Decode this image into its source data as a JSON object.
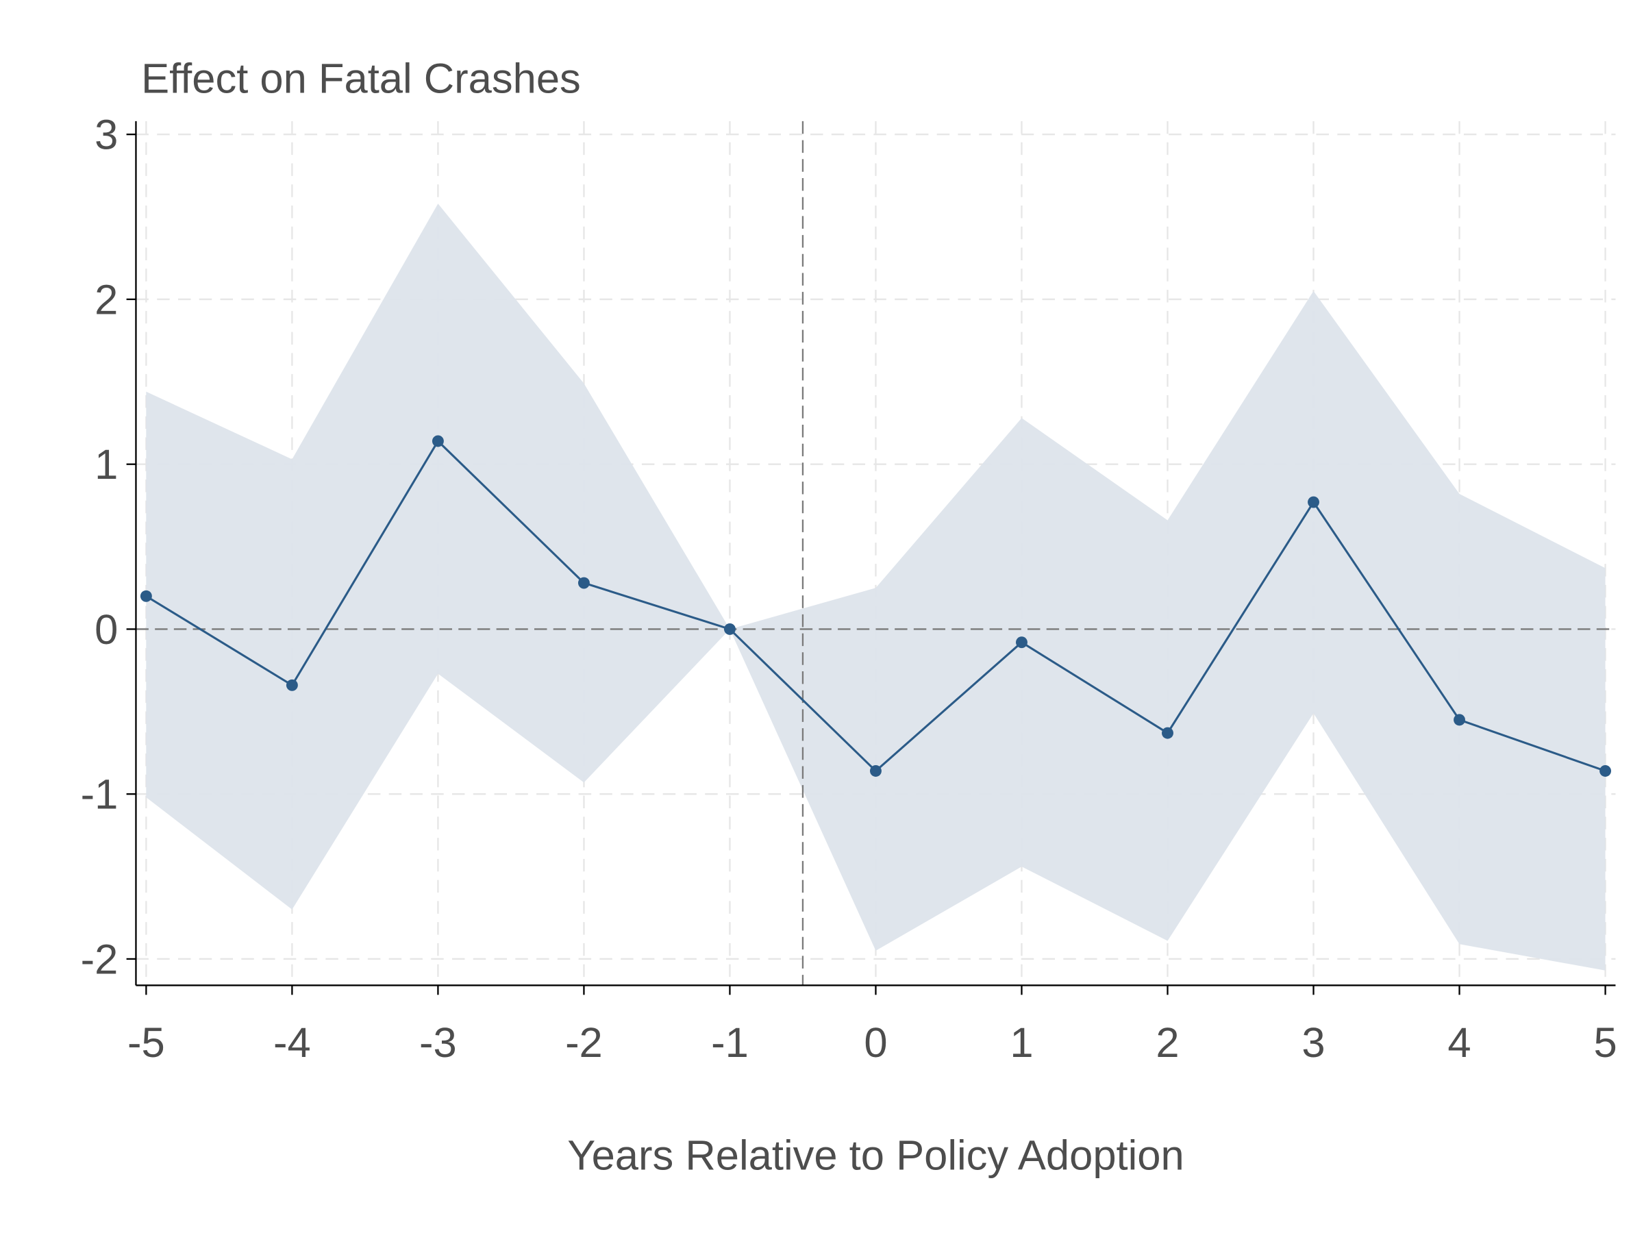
{
  "chart_data": {
    "type": "line",
    "title": "Effect on Fatal Crashes",
    "xlabel": "Years Relative to Policy Adoption",
    "ylabel": "",
    "x": [
      -5,
      -4,
      -3,
      -2,
      -1,
      0,
      1,
      2,
      3,
      4,
      5
    ],
    "series": [
      {
        "values": [
          0.2,
          -0.34,
          1.14,
          0.28,
          0.0,
          -0.86,
          -0.08,
          -0.63,
          0.77,
          -0.55,
          -0.86
        ],
        "ci_upper": [
          1.44,
          1.03,
          2.58,
          1.49,
          0.0,
          0.25,
          1.28,
          0.66,
          2.05,
          0.82,
          0.37
        ],
        "ci_lower": [
          -1.02,
          -1.7,
          -0.27,
          -0.93,
          0.0,
          -1.95,
          -1.44,
          -1.89,
          -0.51,
          -1.91,
          -2.07
        ]
      }
    ],
    "xticks": [
      "-5",
      "-4",
      "-3",
      "-2",
      "-1",
      "0",
      "1",
      "2",
      "3",
      "4",
      "5"
    ],
    "yticks": [
      "-2",
      "-1",
      "0",
      "1",
      "2",
      "3"
    ],
    "xlim": [
      -5.07,
      5.07
    ],
    "ylim": [
      -2.16,
      3.08
    ],
    "reference_lines": {
      "horizontal_y": 0,
      "vertical_x": -0.5
    },
    "grid": true,
    "colors": {
      "line": "#2b5b88",
      "ci_band": "#dde4eb",
      "grid": "#e6e6e6",
      "reference": "#7a7a7a",
      "text": "#4d4d4d"
    }
  }
}
